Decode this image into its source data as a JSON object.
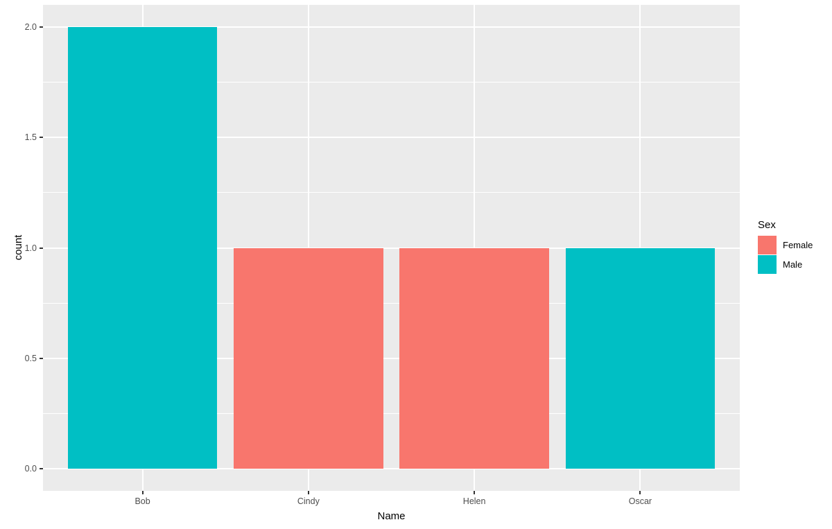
{
  "chart_data": {
    "type": "bar",
    "title": "",
    "xlabel": "Name",
    "ylabel": "count",
    "categories": [
      "Bob",
      "Cindy",
      "Helen",
      "Oscar"
    ],
    "values": [
      2,
      1,
      1,
      1
    ],
    "groups": [
      "Male",
      "Female",
      "Female",
      "Male"
    ],
    "group_colors": {
      "Female": "#F8766D",
      "Male": "#00BFC4"
    },
    "ylim": [
      0,
      2
    ],
    "yticks": [
      {
        "value": 0.0,
        "label": "0.0"
      },
      {
        "value": 0.5,
        "label": "0.5"
      },
      {
        "value": 1.0,
        "label": "1.0"
      },
      {
        "value": 1.5,
        "label": "1.5"
      },
      {
        "value": 2.0,
        "label": "2.0"
      }
    ],
    "yminor": [
      0.25,
      0.75,
      1.25,
      1.75
    ],
    "grid": true,
    "panel_background": "#EBEBEB",
    "grid_color": "#FFFFFF",
    "tick_label_color": "#4D4D4D",
    "tick_mark_color": "#333333",
    "legend": {
      "position": "right",
      "title": "Sex",
      "entries": [
        {
          "label": "Female",
          "color": "#F8766D"
        },
        {
          "label": "Male",
          "color": "#00BFC4"
        }
      ]
    }
  }
}
